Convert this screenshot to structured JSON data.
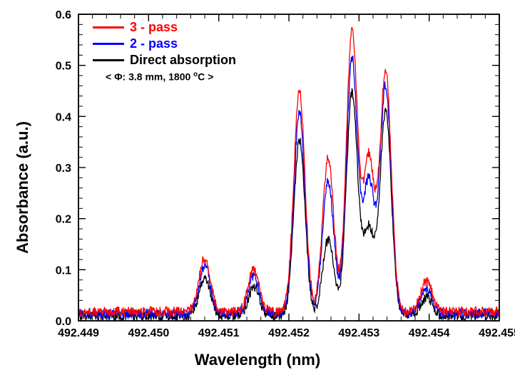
{
  "chart": {
    "type": "line",
    "background_color": "#ffffff",
    "axis_color": "#000000",
    "axis_line_width": 1.6,
    "tick_length_major": 10,
    "tick_length_minor": 6,
    "tick_label_fontsize": 16,
    "title_fontsize": 22,
    "title_fontweight": "bold",
    "x": {
      "label": "Wavelength (nm)",
      "min": 492.449,
      "max": 492.455,
      "tick_step": 0.001,
      "minor_divisions": 5,
      "ticks": [
        "492.449",
        "492.450",
        "492.451",
        "492.452",
        "492.453",
        "492.454",
        "492.455"
      ]
    },
    "y": {
      "label": "Absorbance (a.u.)",
      "min": 0.0,
      "max": 0.6,
      "tick_step": 0.1,
      "minor_divisions": 5,
      "ticks": [
        "0.0",
        "0.1",
        "0.2",
        "0.3",
        "0.4",
        "0.5",
        "0.6"
      ]
    },
    "noise": {
      "amplitude": 0.01,
      "step_nm": 7e-06
    },
    "peak_width_nm": 8e-05,
    "series": [
      {
        "name": "3 - pass",
        "color": "#ff0000",
        "line_width": 1.3,
        "baseline": 0.018,
        "heights": [
          0.105,
          0.082,
          0.432,
          0.3,
          0.546,
          0.3,
          0.47,
          0.06
        ]
      },
      {
        "name": "2 - pass",
        "color": "#0000ff",
        "line_width": 1.3,
        "baseline": 0.014,
        "heights": [
          0.095,
          0.075,
          0.392,
          0.26,
          0.496,
          0.258,
          0.446,
          0.05
        ]
      },
      {
        "name": "Direct absorption",
        "color": "#000000",
        "line_width": 1.3,
        "baseline": 0.01,
        "heights": [
          0.074,
          0.055,
          0.342,
          0.148,
          0.436,
          0.168,
          0.4,
          0.036
        ]
      }
    ],
    "peak_centers_nm": [
      492.4508,
      492.4515,
      492.45215,
      492.45256,
      492.4529,
      492.45314,
      492.45338,
      492.45396
    ],
    "annotation": {
      "text": "< Φ: 3.8 mm, 1800 °C >",
      "fontsize": 14
    },
    "legend": {
      "fontsize": 18
    }
  }
}
